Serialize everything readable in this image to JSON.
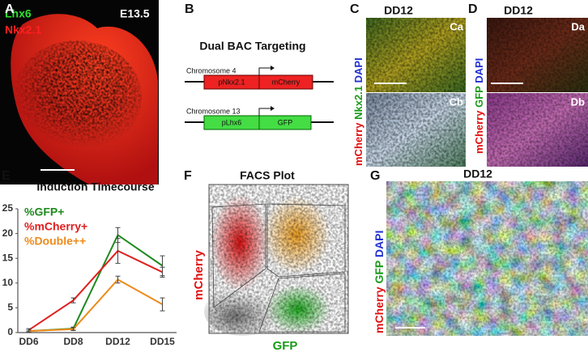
{
  "panels": {
    "a": {
      "label": "A",
      "markers": [
        "Lhx6",
        "Nkx2.1"
      ],
      "stage": "E13.5"
    },
    "b": {
      "label": "B",
      "title": "Dual BAC Targeting",
      "constructs": [
        {
          "chromosome": "Chromosome 4",
          "promoter": "pNkx2.1",
          "reporter": "mCherry"
        },
        {
          "chromosome": "Chromosome 13",
          "promoter": "pLhx6",
          "reporter": "GFP"
        }
      ]
    },
    "c": {
      "label": "C",
      "title": "DD12",
      "stains": [
        "mCherry",
        "Nkx2.1",
        "DAPI"
      ],
      "subpanels": [
        "Ca",
        "Cb"
      ]
    },
    "d": {
      "label": "D",
      "title": "DD12",
      "stains": [
        "mCherry",
        "GFP",
        "DAPI"
      ],
      "subpanels": [
        "Da",
        "Db"
      ]
    },
    "e": {
      "label": "E"
    },
    "f": {
      "label": "F",
      "title": "FACS Plot",
      "ylabel": "mCherry",
      "xlabel": "GFP"
    },
    "g": {
      "label": "G",
      "title": "DD12",
      "stains": [
        "mCherry",
        "GFP",
        "DAPI"
      ]
    }
  },
  "chart_data": {
    "type": "line",
    "title": "Induction Timecourse",
    "categories": [
      "DD6",
      "DD8",
      "DD12",
      "DD15"
    ],
    "series": [
      {
        "name": "%GFP+",
        "color": "#1e8a1e",
        "values": [
          0.3,
          0.8,
          19.7,
          13.5
        ],
        "errors": [
          0.2,
          0.3,
          1.5,
          2.0
        ]
      },
      {
        "name": "%mCherry+",
        "color": "#e02020",
        "values": [
          0.5,
          6.5,
          16.5,
          12.2
        ],
        "errors": [
          0.3,
          0.5,
          2.5,
          1.0
        ]
      },
      {
        "name": "%Double++",
        "color": "#ee8a1a",
        "values": [
          0.3,
          0.7,
          10.7,
          5.7
        ],
        "errors": [
          0.2,
          0.3,
          0.7,
          1.3
        ]
      }
    ],
    "ylim": [
      0,
      25
    ],
    "yticks": [
      0,
      5,
      10,
      15,
      20,
      25
    ]
  }
}
